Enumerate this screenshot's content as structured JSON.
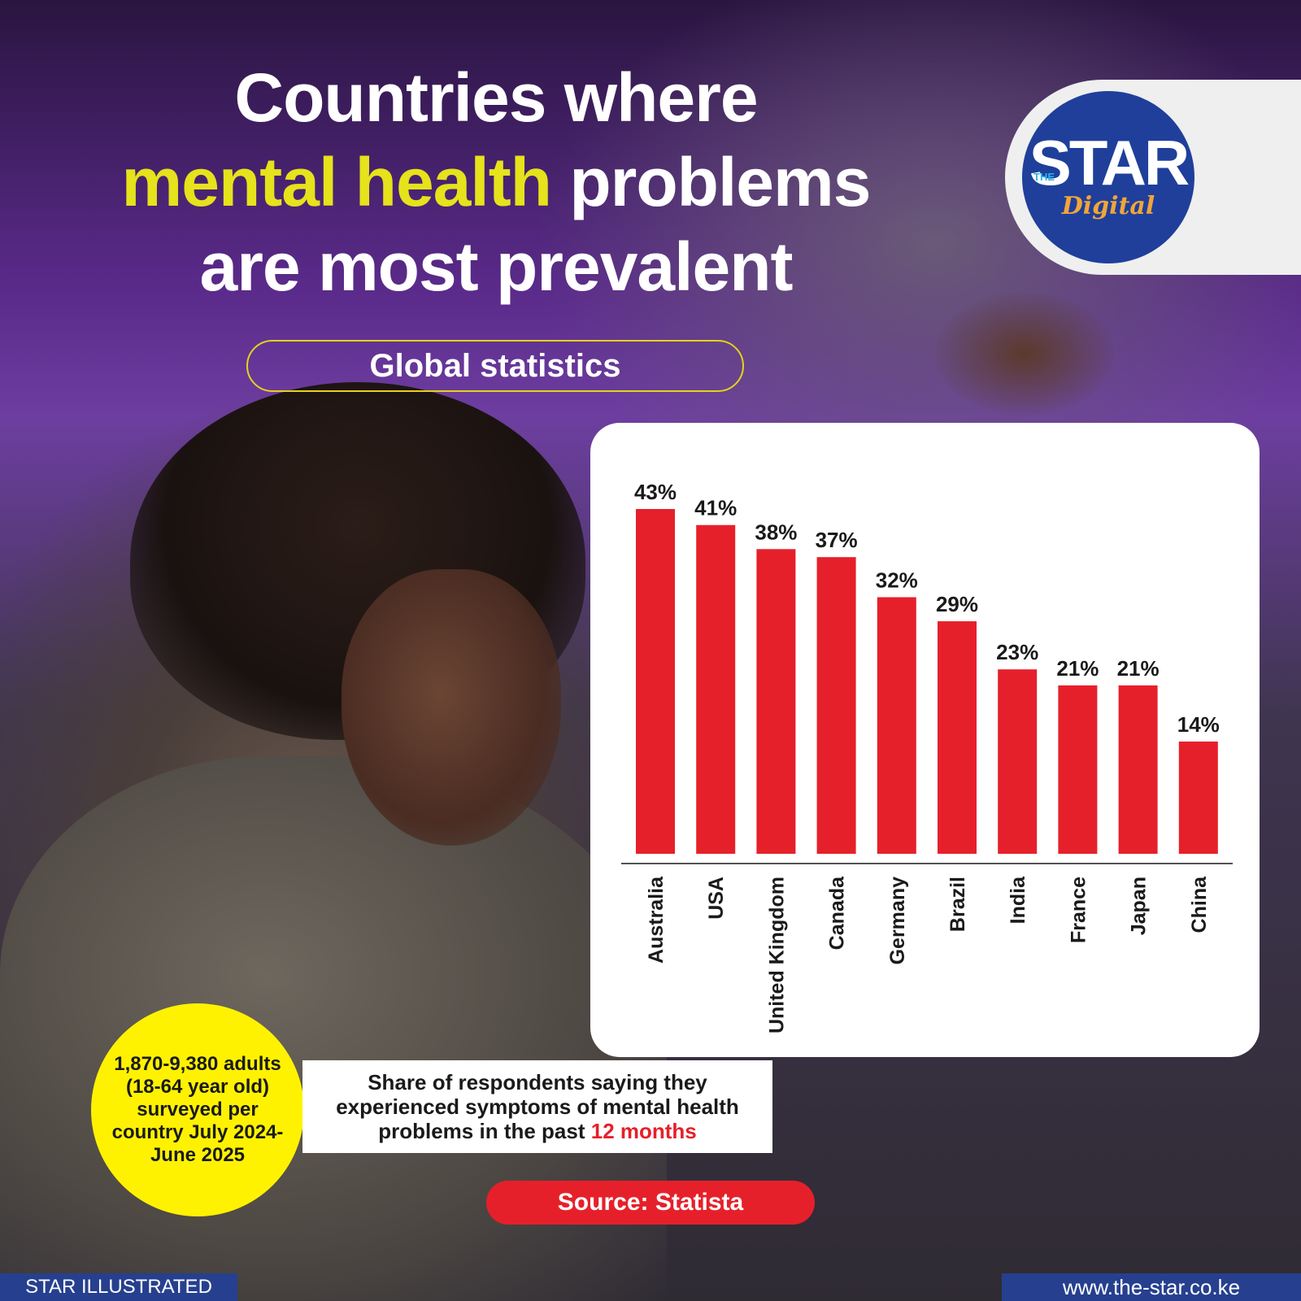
{
  "title": {
    "line1": "Countries where",
    "highlight": "mental health",
    "line2_rest": "problems",
    "line3": "are most prevalent"
  },
  "subtitle": "Global statistics",
  "logo": {
    "the": "THE",
    "star": "STAR",
    "digital": "Digital"
  },
  "colors": {
    "bar": "#e6202a",
    "highlight": "#e6e21b",
    "badge": "#fff200",
    "footer": "#26408f"
  },
  "chart_data": {
    "type": "bar",
    "categories": [
      "Australia",
      "USA",
      "United Kingdom",
      "Canada",
      "Germany",
      "Brazil",
      "India",
      "France",
      "Japan",
      "China"
    ],
    "values": [
      43,
      41,
      38,
      37,
      32,
      29,
      23,
      21,
      21,
      14
    ],
    "data_labels": [
      "43%",
      "41%",
      "38%",
      "37%",
      "32%",
      "29%",
      "23%",
      "21%",
      "21%",
      "14%"
    ],
    "ylim": [
      0,
      43
    ],
    "grid": false
  },
  "badge_text": "1,870-9,380 adults (18-64 year old) surveyed per country July 2024-June 2025",
  "caption": {
    "text": "Share of respondents saying they experienced symptoms of mental health problems in the past",
    "highlight": "12 months"
  },
  "source": "Source: Statista",
  "footer": {
    "left": "STAR ILLUSTRATED",
    "right": "www.the-star.co.ke"
  }
}
